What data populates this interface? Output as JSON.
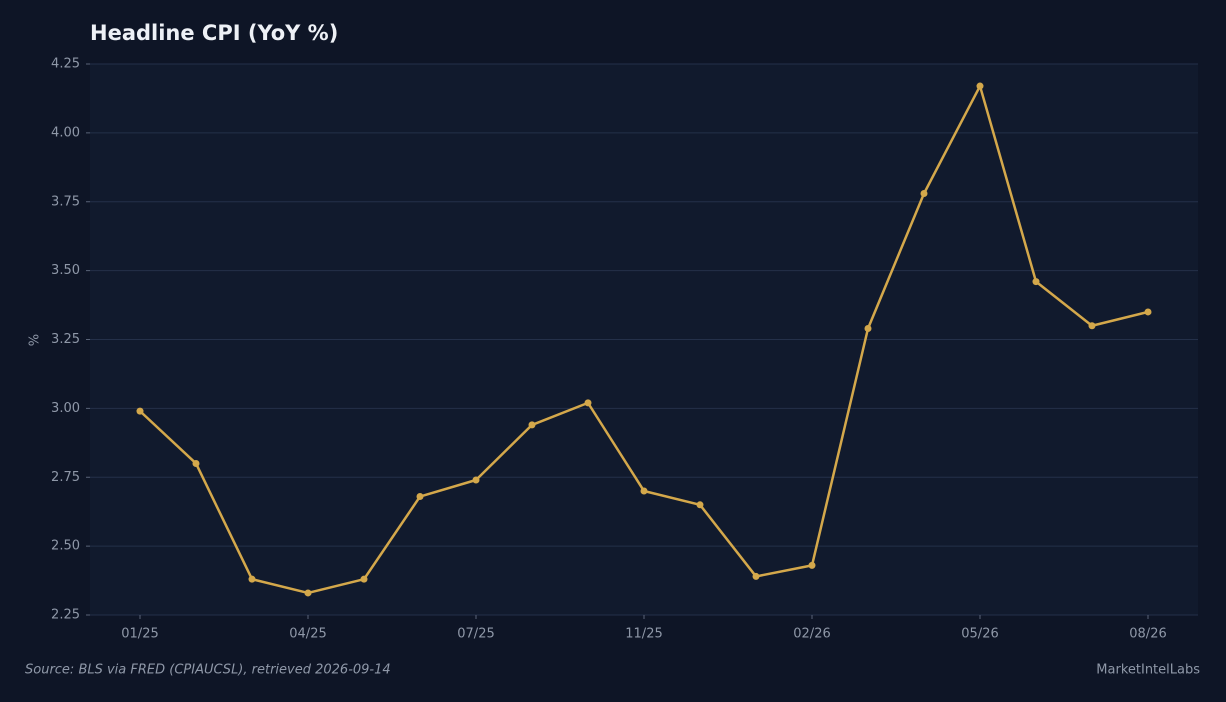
{
  "chart_data": {
    "type": "line",
    "title": "Headline CPI (YoY %)",
    "y_label": "%",
    "source": "Source: BLS via FRED (CPIAUCSL), retrieved 2026-09-14",
    "credit": "MarketIntelLabs",
    "categories": [
      "01/25",
      null,
      null,
      "04/25",
      null,
      null,
      "07/25",
      null,
      null,
      "11/25",
      null,
      null,
      "02/26",
      null,
      null,
      "05/26",
      null,
      null,
      "08/26"
    ],
    "values": [
      2.99,
      2.8,
      2.38,
      2.33,
      2.38,
      2.68,
      2.74,
      2.94,
      3.02,
      2.7,
      2.65,
      2.39,
      2.43,
      3.29,
      3.78,
      4.17,
      3.46,
      3.3,
      3.35
    ],
    "color": "#d4a84b",
    "ylim": [
      2.25,
      4.25
    ],
    "yticks": [
      2.25,
      {
        "value": 2.5,
        "label": "2.50"
      },
      2.75,
      {
        "value": 3,
        "label": "3.00"
      },
      3.25,
      {
        "value": 3.5,
        "label": "3.50"
      },
      3.75,
      {
        "value": 4,
        "label": "4.00"
      },
      4.25
    ],
    "grid": true
  }
}
